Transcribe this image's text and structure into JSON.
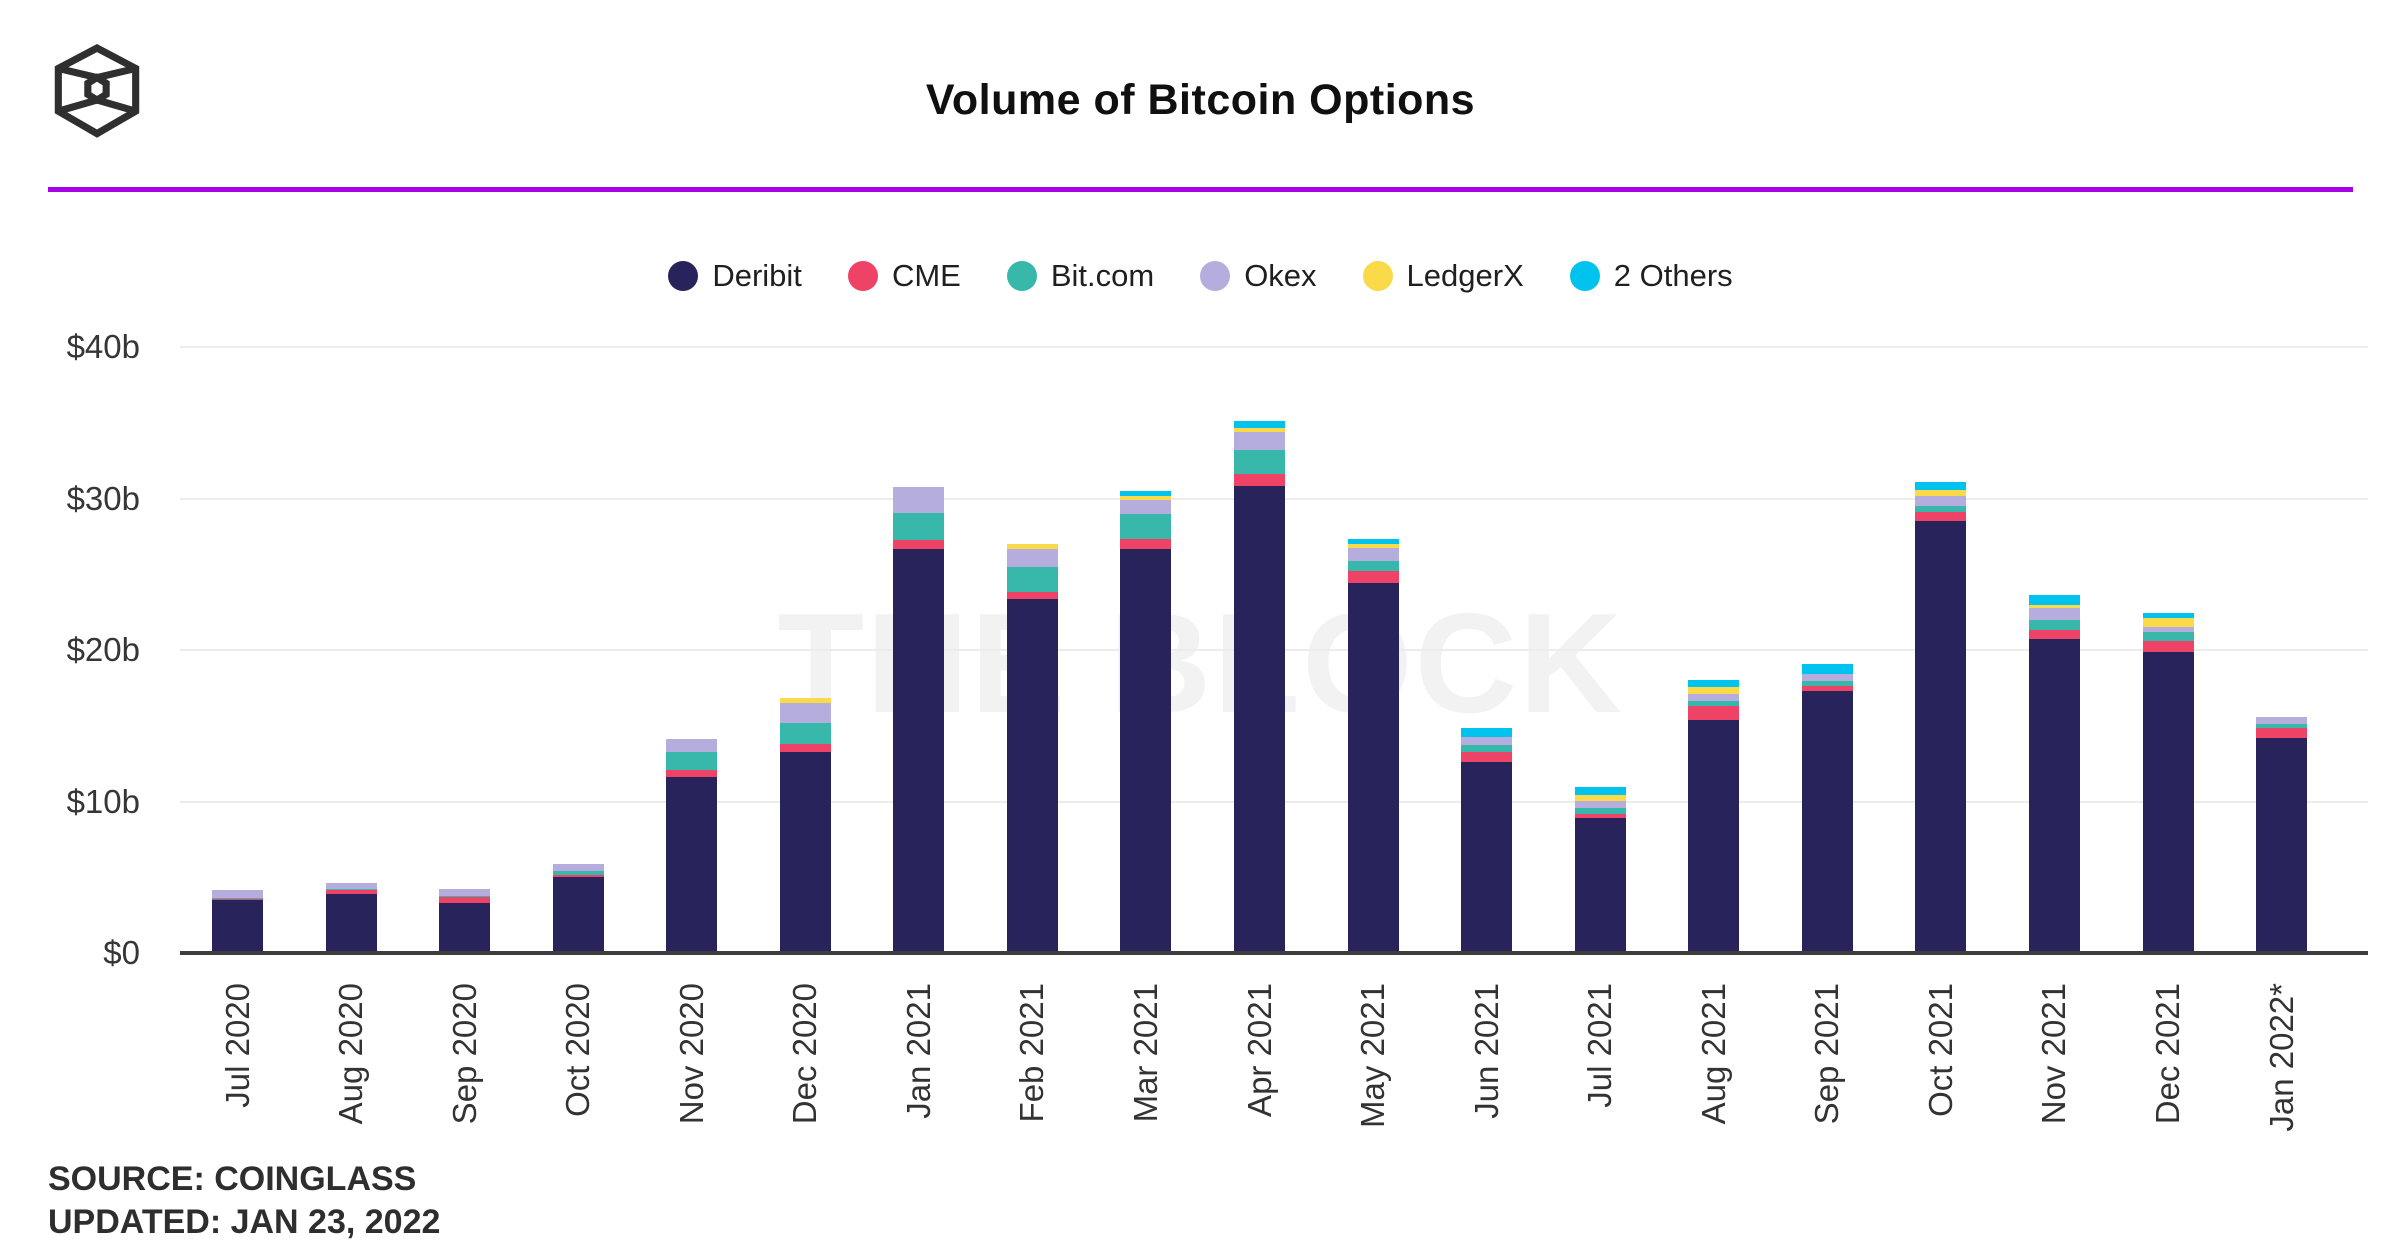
{
  "header": {
    "title": "Volume of Bitcoin Options",
    "logo_icon": "the-block-cube-logo"
  },
  "watermark": "THE BLOCK",
  "footer": {
    "source": "SOURCE: COINGLASS",
    "updated": "UPDATED: JAN 23, 2022"
  },
  "chart_data": {
    "type": "bar",
    "stacked": true,
    "title": "Volume of Bitcoin Options",
    "xlabel": "",
    "ylabel": "",
    "ylim": [
      0,
      40
    ],
    "grid": true,
    "legend_position": "top",
    "yticks": [
      {
        "label": "$0",
        "value": 0
      },
      {
        "label": "$10b",
        "value": 10
      },
      {
        "label": "$20b",
        "value": 20
      },
      {
        "label": "$30b",
        "value": 30
      },
      {
        "label": "$40b",
        "value": 40
      }
    ],
    "categories": [
      "Jul 2020",
      "Aug 2020",
      "Sep 2020",
      "Oct 2020",
      "Nov 2020",
      "Dec 2020",
      "Jan 2021",
      "Feb 2021",
      "Mar 2021",
      "Apr 2021",
      "May 2021",
      "Jun 2021",
      "Jul 2021",
      "Aug 2021",
      "Sep 2021",
      "Oct 2021",
      "Nov 2021",
      "Dec 2021",
      "Jan 2022*"
    ],
    "series": [
      {
        "name": "Deribit",
        "color": "#29235C",
        "values": [
          3.5,
          3.9,
          3.3,
          5.0,
          11.6,
          13.3,
          26.7,
          23.4,
          26.7,
          30.8,
          24.4,
          12.6,
          8.9,
          15.4,
          17.3,
          28.5,
          20.7,
          19.9,
          14.2
        ]
      },
      {
        "name": "CME",
        "color": "#EE4266",
        "values": [
          0.05,
          0.25,
          0.4,
          0.15,
          0.45,
          0.5,
          0.55,
          0.45,
          0.65,
          0.8,
          0.8,
          0.7,
          0.3,
          0.9,
          0.3,
          0.6,
          0.65,
          0.7,
          0.65
        ]
      },
      {
        "name": "Bit.com",
        "color": "#38B8AB",
        "values": [
          0.05,
          0.1,
          0.05,
          0.25,
          1.2,
          1.4,
          1.8,
          1.6,
          1.65,
          1.6,
          0.7,
          0.45,
          0.35,
          0.35,
          0.35,
          0.4,
          0.6,
          0.6,
          0.25
        ]
      },
      {
        "name": "Okex",
        "color": "#B4ADDE",
        "values": [
          0.55,
          0.4,
          0.5,
          0.45,
          0.9,
          1.3,
          1.7,
          1.25,
          0.9,
          1.2,
          0.85,
          0.5,
          0.5,
          0.45,
          0.5,
          0.65,
          0.8,
          0.35,
          0.45
        ]
      },
      {
        "name": "LedgerX",
        "color": "#FBDA49",
        "values": [
          0,
          0,
          0,
          0,
          0,
          0.35,
          0,
          0.3,
          0.25,
          0.25,
          0.25,
          0,
          0.4,
          0.45,
          0,
          0.4,
          0.25,
          0.55,
          0
        ]
      },
      {
        "name": "2 Others",
        "color": "#00C2EE",
        "values": [
          0,
          0,
          0,
          0,
          0,
          0,
          0,
          0,
          0.35,
          0.5,
          0.35,
          0.6,
          0.5,
          0.45,
          0.65,
          0.55,
          0.65,
          0.35,
          0
        ]
      }
    ]
  }
}
